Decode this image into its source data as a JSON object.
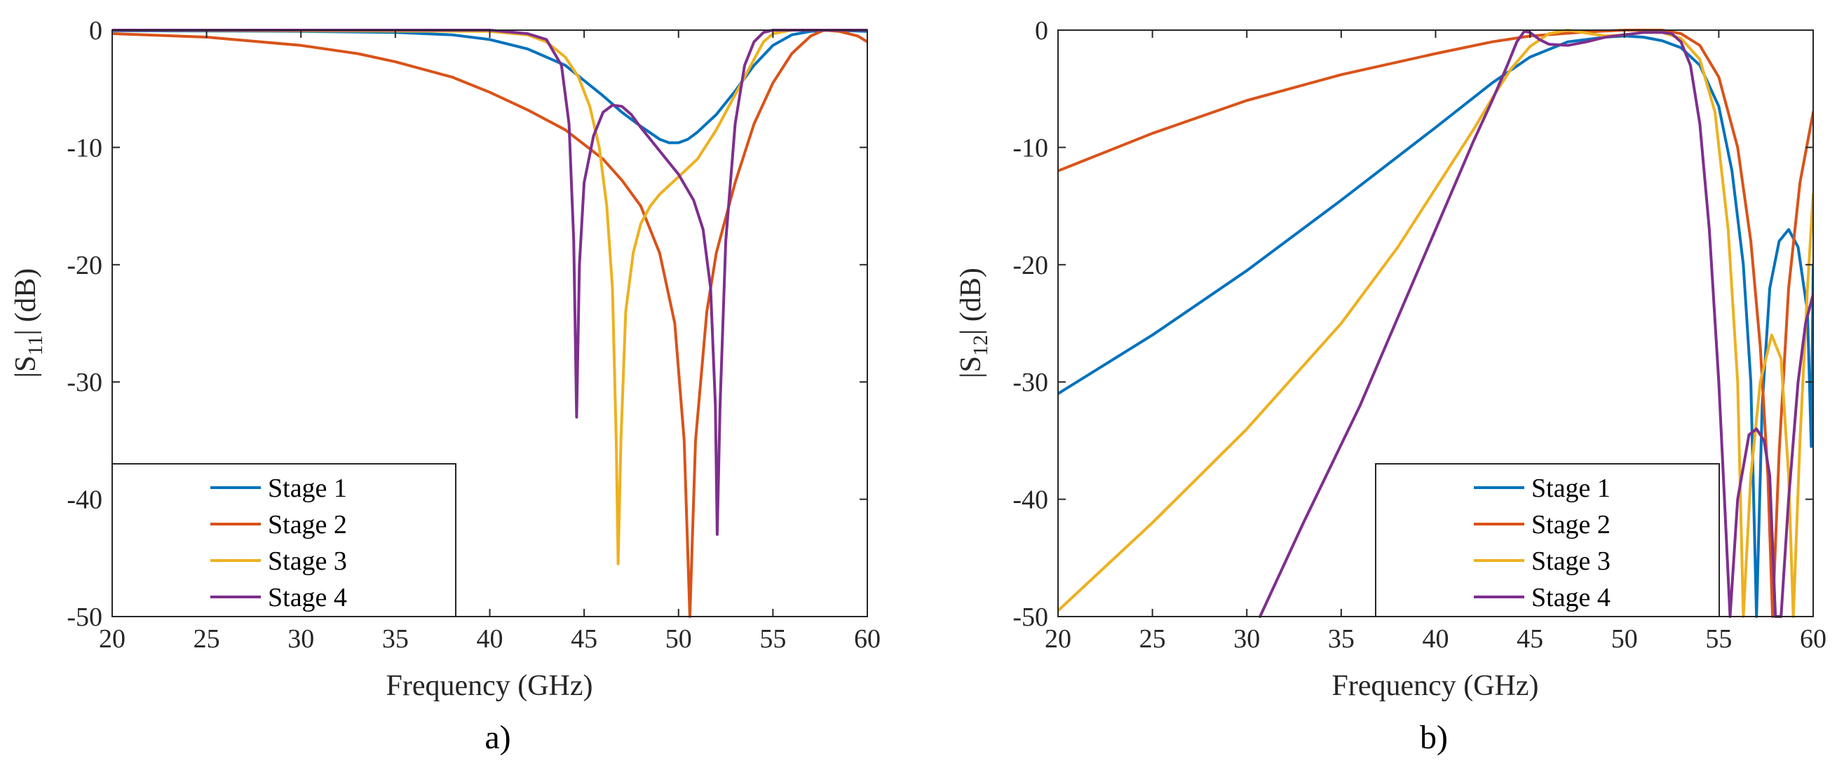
{
  "colors": [
    "#0072BD",
    "#D95319",
    "#EDB120",
    "#7E2F8E"
  ],
  "chart_data": [
    {
      "type": "line",
      "panel_label": "a)",
      "xlabel": "Frequency (GHz)",
      "ylabel_prefix": "|S",
      "ylabel_sub": "11",
      "ylabel_suffix": "| (dB)",
      "xlim": [
        20,
        60
      ],
      "ylim": [
        -50,
        0
      ],
      "xticks": [
        20,
        25,
        30,
        35,
        40,
        45,
        50,
        55,
        60
      ],
      "yticks": [
        0,
        -10,
        -20,
        -30,
        -40,
        -50
      ],
      "legend_position": "bottom-left",
      "series": [
        {
          "name": "Stage 1",
          "points": [
            [
              20,
              -0.05
            ],
            [
              30,
              -0.1
            ],
            [
              35,
              -0.2
            ],
            [
              38,
              -0.4
            ],
            [
              40,
              -0.8
            ],
            [
              42,
              -1.6
            ],
            [
              44,
              -3
            ],
            [
              45,
              -4.3
            ],
            [
              46,
              -5.6
            ],
            [
              47,
              -7
            ],
            [
              48,
              -8.2
            ],
            [
              49,
              -9.3
            ],
            [
              49.5,
              -9.6
            ],
            [
              50,
              -9.6
            ],
            [
              50.5,
              -9.3
            ],
            [
              51,
              -8.7
            ],
            [
              52,
              -7.2
            ],
            [
              53,
              -5.2
            ],
            [
              54,
              -3
            ],
            [
              55,
              -1.3
            ],
            [
              56,
              -0.4
            ],
            [
              57,
              -0.1
            ],
            [
              58,
              0
            ],
            [
              60,
              -0.1
            ]
          ]
        },
        {
          "name": "Stage 2",
          "points": [
            [
              20,
              -0.3
            ],
            [
              25,
              -0.6
            ],
            [
              30,
              -1.3
            ],
            [
              33,
              -2
            ],
            [
              35,
              -2.7
            ],
            [
              38,
              -4
            ],
            [
              40,
              -5.3
            ],
            [
              42,
              -6.8
            ],
            [
              44,
              -8.5
            ],
            [
              46,
              -11
            ],
            [
              47,
              -12.8
            ],
            [
              48,
              -15
            ],
            [
              49,
              -19
            ],
            [
              49.8,
              -25
            ],
            [
              50.3,
              -35
            ],
            [
              50.6,
              -50
            ],
            [
              50.9,
              -35
            ],
            [
              51.5,
              -24
            ],
            [
              52,
              -19
            ],
            [
              53,
              -13
            ],
            [
              54,
              -8
            ],
            [
              55,
              -4.5
            ],
            [
              56,
              -2
            ],
            [
              57,
              -0.5
            ],
            [
              57.7,
              0
            ],
            [
              58.5,
              -0.1
            ],
            [
              59.5,
              -0.5
            ],
            [
              60,
              -1
            ]
          ]
        },
        {
          "name": "Stage 3",
          "points": [
            [
              20,
              0
            ],
            [
              40,
              -0.1
            ],
            [
              42,
              -0.4
            ],
            [
              43,
              -1
            ],
            [
              44,
              -2.3
            ],
            [
              44.7,
              -4
            ],
            [
              45.3,
              -6.5
            ],
            [
              45.8,
              -10
            ],
            [
              46.2,
              -15
            ],
            [
              46.5,
              -22
            ],
            [
              46.7,
              -35
            ],
            [
              46.8,
              -45.5
            ],
            [
              46.95,
              -35
            ],
            [
              47.2,
              -24
            ],
            [
              47.6,
              -19
            ],
            [
              48,
              -16.5
            ],
            [
              48.5,
              -15
            ],
            [
              49,
              -14
            ],
            [
              50,
              -12.5
            ],
            [
              51,
              -11
            ],
            [
              52,
              -8.5
            ],
            [
              53,
              -5.5
            ],
            [
              54,
              -2.5
            ],
            [
              54.5,
              -1
            ],
            [
              55,
              -0.3
            ],
            [
              56,
              0
            ],
            [
              58,
              0
            ],
            [
              60,
              0
            ]
          ]
        },
        {
          "name": "Stage 4",
          "points": [
            [
              20,
              0
            ],
            [
              40,
              0
            ],
            [
              42,
              -0.3
            ],
            [
              43,
              -0.8
            ],
            [
              43.8,
              -3
            ],
            [
              44.2,
              -8
            ],
            [
              44.45,
              -18
            ],
            [
              44.6,
              -33
            ],
            [
              44.75,
              -20
            ],
            [
              45,
              -13
            ],
            [
              45.5,
              -9
            ],
            [
              46,
              -7
            ],
            [
              46.5,
              -6.4
            ],
            [
              47,
              -6.5
            ],
            [
              47.5,
              -7.2
            ],
            [
              48,
              -8.3
            ],
            [
              49,
              -10.3
            ],
            [
              50,
              -12.3
            ],
            [
              50.8,
              -14.5
            ],
            [
              51.3,
              -17
            ],
            [
              51.7,
              -22
            ],
            [
              51.95,
              -32
            ],
            [
              52.05,
              -43
            ],
            [
              52.2,
              -32
            ],
            [
              52.5,
              -18
            ],
            [
              53,
              -8
            ],
            [
              53.5,
              -3
            ],
            [
              54,
              -1
            ],
            [
              54.5,
              -0.2
            ],
            [
              55,
              0
            ],
            [
              60,
              0
            ]
          ]
        }
      ]
    },
    {
      "type": "line",
      "panel_label": "b)",
      "xlabel": "Frequency (GHz)",
      "ylabel_prefix": "|S",
      "ylabel_sub": "12",
      "ylabel_suffix": "| (dB)",
      "xlim": [
        20,
        60
      ],
      "ylim": [
        -50,
        0
      ],
      "xticks": [
        20,
        25,
        30,
        35,
        40,
        45,
        50,
        55,
        60
      ],
      "yticks": [
        0,
        -10,
        -20,
        -30,
        -40,
        -50
      ],
      "legend_position": "bottom-right",
      "series": [
        {
          "name": "Stage 1",
          "points": [
            [
              20,
              -31
            ],
            [
              25,
              -26
            ],
            [
              30,
              -20.5
            ],
            [
              35,
              -14.5
            ],
            [
              40,
              -8.3
            ],
            [
              43,
              -4.5
            ],
            [
              45,
              -2.3
            ],
            [
              47,
              -1
            ],
            [
              49,
              -0.6
            ],
            [
              50,
              -0.5
            ],
            [
              51,
              -0.6
            ],
            [
              52,
              -0.9
            ],
            [
              53,
              -1.5
            ],
            [
              54,
              -3
            ],
            [
              55,
              -6.5
            ],
            [
              55.7,
              -12
            ],
            [
              56.3,
              -20
            ],
            [
              56.7,
              -30
            ],
            [
              57,
              -50
            ],
            [
              57.3,
              -32
            ],
            [
              57.7,
              -22
            ],
            [
              58.2,
              -18
            ],
            [
              58.7,
              -17
            ],
            [
              59.2,
              -18.5
            ],
            [
              59.7,
              -24
            ],
            [
              59.9,
              -35.5
            ],
            [
              60,
              -20
            ]
          ]
        },
        {
          "name": "Stage 2",
          "points": [
            [
              20,
              -12
            ],
            [
              25,
              -8.8
            ],
            [
              30,
              -6
            ],
            [
              35,
              -3.8
            ],
            [
              40,
              -2
            ],
            [
              43,
              -1
            ],
            [
              45,
              -0.5
            ],
            [
              48,
              -0.15
            ],
            [
              50,
              0
            ],
            [
              52,
              0
            ],
            [
              53,
              -0.3
            ],
            [
              54,
              -1.3
            ],
            [
              55,
              -4
            ],
            [
              56,
              -10
            ],
            [
              56.7,
              -18
            ],
            [
              57.2,
              -27
            ],
            [
              57.6,
              -38
            ],
            [
              57.85,
              -50
            ],
            [
              58.2,
              -36
            ],
            [
              58.7,
              -22
            ],
            [
              59.3,
              -13
            ],
            [
              60,
              -7
            ]
          ]
        },
        {
          "name": "Stage 3",
          "points": [
            [
              20,
              -49.5
            ],
            [
              25,
              -42
            ],
            [
              30,
              -34
            ],
            [
              35,
              -25
            ],
            [
              38,
              -18.5
            ],
            [
              40,
              -13.5
            ],
            [
              42,
              -8.5
            ],
            [
              43,
              -5.8
            ],
            [
              44,
              -3.3
            ],
            [
              45,
              -1.4
            ],
            [
              46,
              -0.3
            ],
            [
              47,
              0
            ],
            [
              49,
              -0.5
            ],
            [
              50,
              -0.4
            ],
            [
              51,
              -0.2
            ],
            [
              52,
              -0.2
            ],
            [
              53,
              -0.7
            ],
            [
              54,
              -2.5
            ],
            [
              54.8,
              -7
            ],
            [
              55.5,
              -17
            ],
            [
              56,
              -30
            ],
            [
              56.3,
              -50
            ],
            [
              56.7,
              -38
            ],
            [
              57.2,
              -30
            ],
            [
              57.8,
              -26
            ],
            [
              58.3,
              -28
            ],
            [
              58.7,
              -38
            ],
            [
              58.95,
              -50
            ],
            [
              59.3,
              -35
            ],
            [
              59.7,
              -22
            ],
            [
              60,
              -14
            ]
          ]
        },
        {
          "name": "Stage 4",
          "points": [
            [
              30.7,
              -50
            ],
            [
              33,
              -42
            ],
            [
              36,
              -32
            ],
            [
              38,
              -24.5
            ],
            [
              40,
              -17
            ],
            [
              42,
              -9.5
            ],
            [
              43,
              -6
            ],
            [
              43.8,
              -3
            ],
            [
              44.3,
              -1
            ],
            [
              44.7,
              -0.1
            ],
            [
              45,
              -0.2
            ],
            [
              45.5,
              -0.8
            ],
            [
              46,
              -1.2
            ],
            [
              47,
              -1.3
            ],
            [
              48,
              -1
            ],
            [
              49,
              -0.6
            ],
            [
              50,
              -0.4
            ],
            [
              51,
              -0.2
            ],
            [
              52,
              -0.2
            ],
            [
              52.5,
              -0.3
            ],
            [
              53,
              -1
            ],
            [
              53.5,
              -3
            ],
            [
              54,
              -8
            ],
            [
              54.5,
              -17
            ],
            [
              55,
              -30
            ],
            [
              55.3,
              -40
            ],
            [
              55.6,
              -50
            ],
            [
              56,
              -40
            ],
            [
              56.6,
              -34.5
            ],
            [
              57,
              -34
            ],
            [
              57.4,
              -35
            ],
            [
              57.7,
              -38
            ],
            [
              58,
              -50
            ],
            [
              58.3,
              -50
            ],
            [
              58.7,
              -40
            ],
            [
              59.2,
              -30
            ],
            [
              59.6,
              -25
            ],
            [
              60,
              -22.5
            ]
          ]
        }
      ]
    }
  ]
}
